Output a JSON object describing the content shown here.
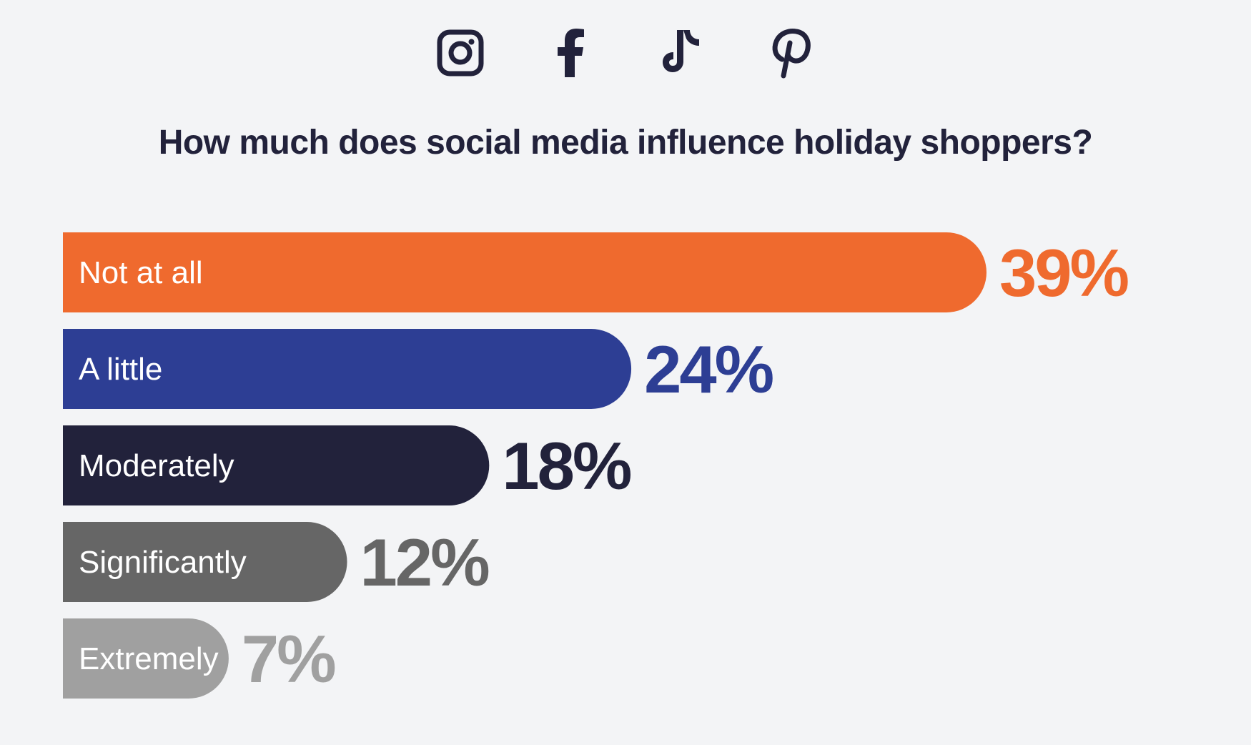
{
  "icons": [
    "instagram-icon",
    "facebook-icon",
    "tiktok-icon",
    "pinterest-icon"
  ],
  "title": "How much does social media influence holiday shoppers?",
  "chart_data": {
    "type": "bar",
    "orientation": "horizontal",
    "title": "How much does social media influence holiday shoppers?",
    "categories": [
      "Not at all",
      "A little",
      "Moderately",
      "Significantly",
      "Extremely"
    ],
    "values": [
      39,
      24,
      18,
      12,
      7
    ],
    "value_labels": [
      "39%",
      "24%",
      "18%",
      "12%",
      "7%"
    ],
    "colors": [
      "#ef6a2e",
      "#2d3e94",
      "#22223b",
      "#666666",
      "#a0a0a0"
    ],
    "xlabel": "",
    "ylabel": "",
    "grid": false,
    "legend": "none"
  }
}
